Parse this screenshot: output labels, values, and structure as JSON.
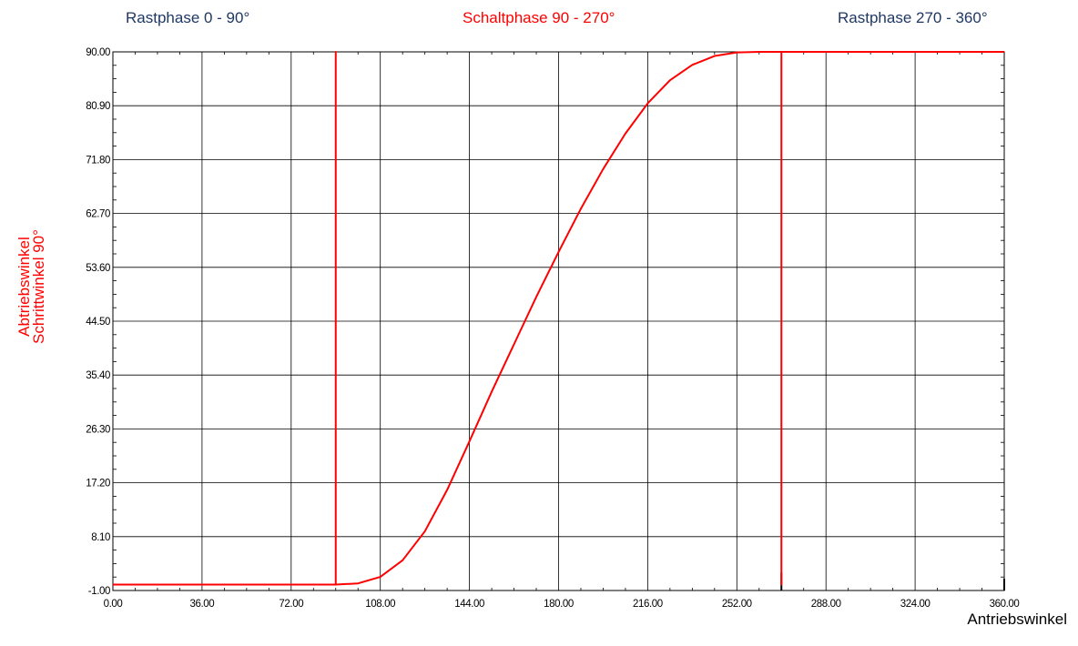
{
  "phase_labels": {
    "left": "Rastphase 0 - 90°",
    "center": "Schaltphase 90 - 270°",
    "right": "Rastphase 270 - 360°"
  },
  "colors": {
    "curve": "#ff0000",
    "rest_label": "#1f3864",
    "switch_label": "#ff0000",
    "axis_label": "#ff0000",
    "grid": "#000000"
  },
  "chart_data": {
    "type": "line",
    "xlabel": "Antriebswinkel",
    "ylabel_lines": [
      "Abtriebswinkel",
      "Schrittwinkel 90°"
    ],
    "xlim": [
      0,
      360
    ],
    "ylim": [
      -1,
      90
    ],
    "x_ticks": [
      "0.00",
      "36.00",
      "72.00",
      "108.00",
      "144.00",
      "180.00",
      "216.00",
      "252.00",
      "288.00",
      "324.00",
      "360.00"
    ],
    "y_ticks": [
      "-1.00",
      "8.10",
      "17.20",
      "26.30",
      "35.40",
      "44.50",
      "53.60",
      "62.70",
      "71.80",
      "80.90",
      "90.00"
    ],
    "grid": true,
    "series": [
      {
        "x": [
          0,
          90,
          90,
          90,
          99,
          108,
          117,
          126,
          135,
          144,
          153,
          162,
          171,
          180,
          189,
          198,
          207,
          216,
          225,
          234,
          243,
          252,
          261,
          270,
          270,
          270,
          360
        ],
        "y": [
          0,
          0,
          90,
          0,
          0.2,
          1.3,
          4.1,
          9.0,
          16.0,
          24.2,
          32.6,
          40.6,
          48.6,
          56.2,
          63.5,
          70.2,
          76.2,
          81.3,
          85.2,
          87.8,
          89.3,
          89.9,
          90,
          90,
          0,
          90,
          90
        ]
      }
    ],
    "markers": [
      {
        "x": 270,
        "y_from": -1,
        "y_to": 2
      },
      {
        "x": 360,
        "y_from": -1,
        "y_to": 1
      }
    ]
  }
}
